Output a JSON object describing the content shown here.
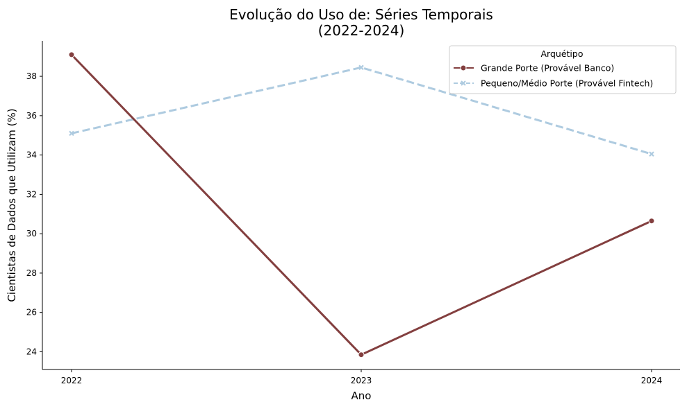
{
  "chart_data": {
    "type": "line",
    "title_line1": "Evolução do Uso de: Séries Temporais",
    "title_line2": "(2022-2024)",
    "xlabel": "Ano",
    "ylabel": "Cientistas de Dados que Utilizam (%)",
    "x": [
      "2022",
      "2023",
      "2024"
    ],
    "ylim": [
      23.1,
      39.8
    ],
    "yticks": [
      24,
      26,
      28,
      30,
      32,
      34,
      36,
      38
    ],
    "grid": false,
    "legend": {
      "title": "Arquétipo",
      "placement": "top-right"
    },
    "series": [
      {
        "name": "Grande Porte (Provável Banco)",
        "values": [
          39.1,
          23.85,
          30.65
        ],
        "color": "#833f3f",
        "line_style": "solid",
        "marker": "circle"
      },
      {
        "name": "Pequeno/Médio Porte (Provável Fintech)",
        "values": [
          35.1,
          38.45,
          34.05
        ],
        "color": "#aecbe0",
        "line_style": "dashed",
        "marker": "x"
      }
    ]
  }
}
